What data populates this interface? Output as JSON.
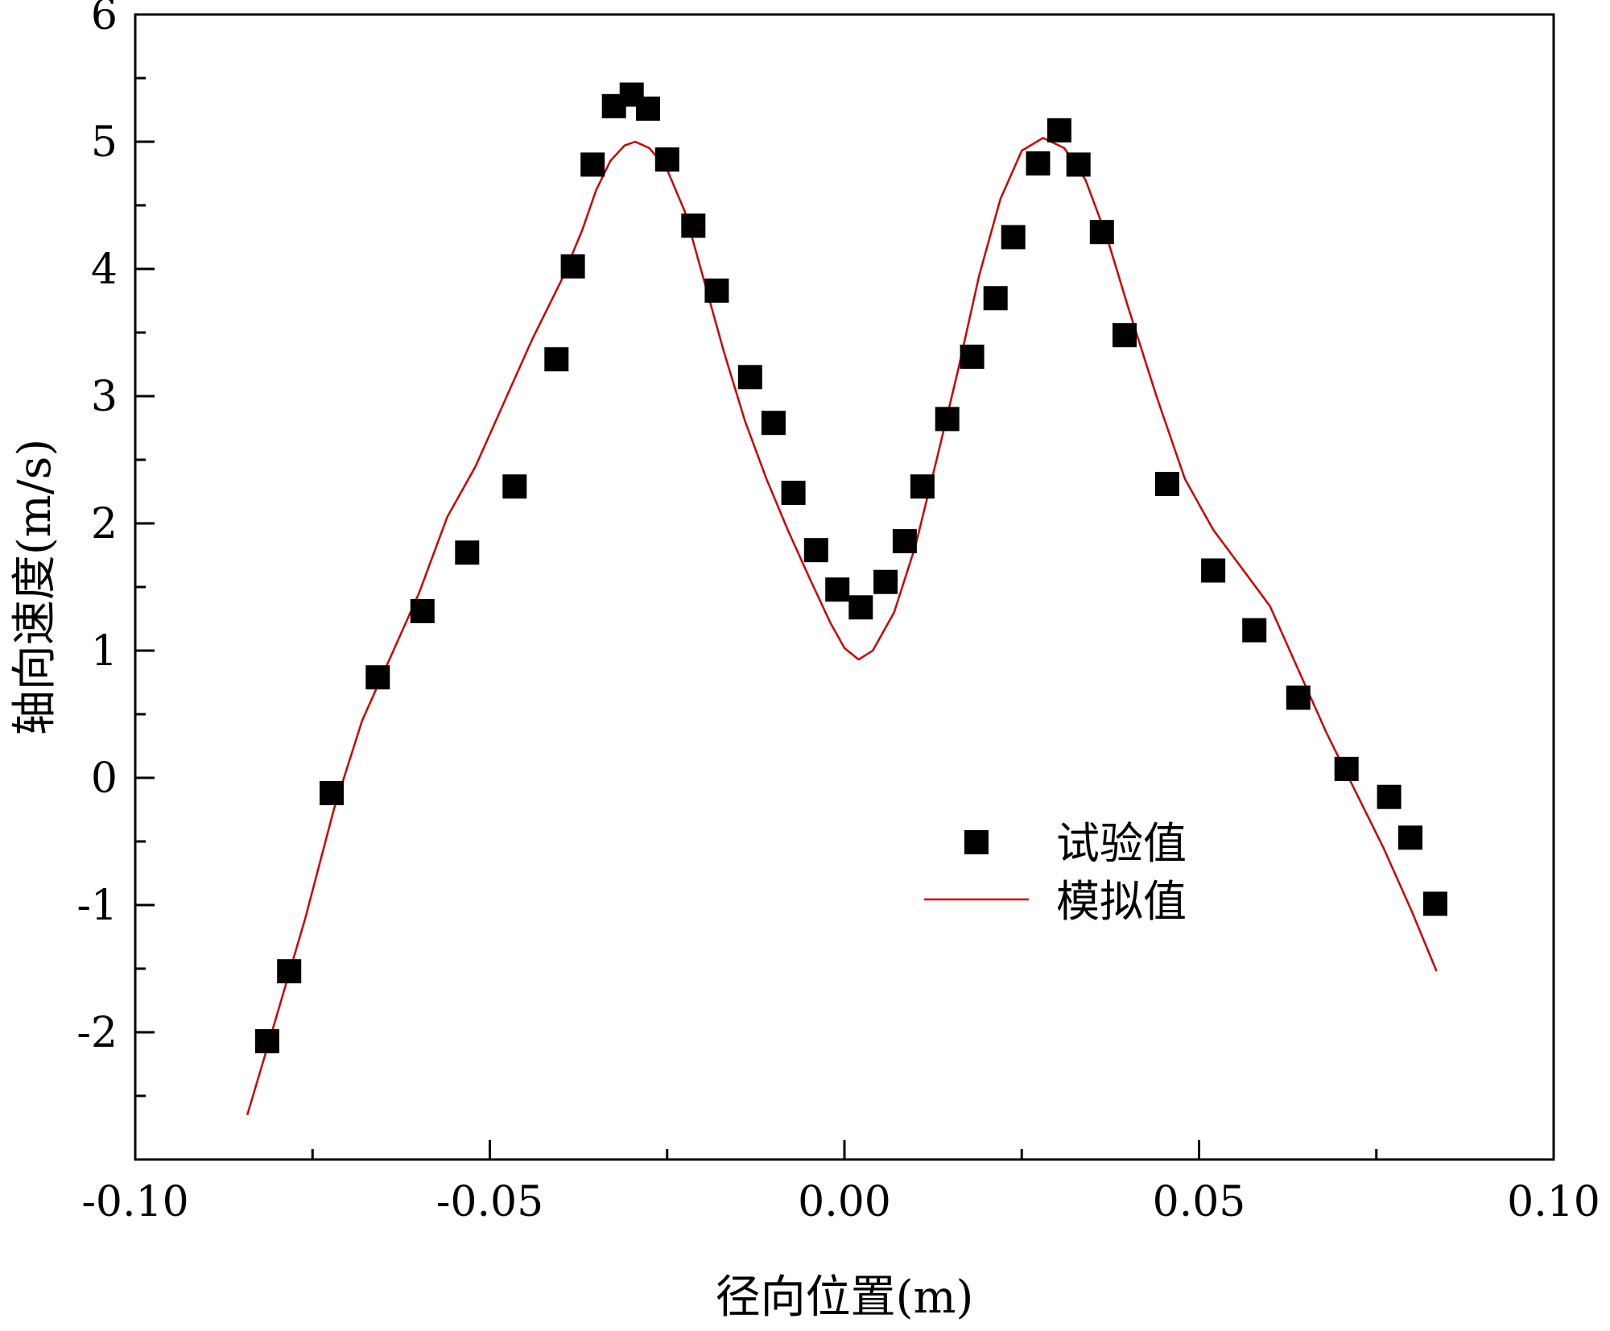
{
  "chart_data": {
    "type": "scatter",
    "title": "",
    "xlabel": "径向位置(m)",
    "ylabel": "轴向速度(m/s)",
    "xlim": [
      -0.1,
      0.1
    ],
    "ylim": [
      -3,
      6
    ],
    "xticks": [
      {
        "value": -0.1,
        "label": "-0.10"
      },
      {
        "value": -0.05,
        "label": "-0.05"
      },
      {
        "value": 0.0,
        "label": "0.00"
      },
      {
        "value": 0.05,
        "label": "0.05"
      },
      {
        "value": 0.1,
        "label": "0.10"
      }
    ],
    "yticks": [
      {
        "value": -2,
        "label": "-2"
      },
      {
        "value": -1,
        "label": "-1"
      },
      {
        "value": 0,
        "label": "0"
      },
      {
        "value": 1,
        "label": "1"
      },
      {
        "value": 2,
        "label": "2"
      },
      {
        "value": 3,
        "label": "3"
      },
      {
        "value": 4,
        "label": "4"
      },
      {
        "value": 5,
        "label": "5"
      },
      {
        "value": 6,
        "label": "6"
      }
    ],
    "grid": false,
    "legend": "center-right",
    "series": [
      {
        "name": "试验值",
        "kind": "scatter",
        "marker": "square",
        "color": "#000000",
        "points": [
          {
            "x": -0.0814,
            "y": -2.07
          },
          {
            "x": -0.0783,
            "y": -1.52
          },
          {
            "x": -0.0723,
            "y": -0.12
          },
          {
            "x": -0.0658,
            "y": 0.79
          },
          {
            "x": -0.0595,
            "y": 1.31
          },
          {
            "x": -0.0532,
            "y": 1.77
          },
          {
            "x": -0.0465,
            "y": 2.29
          },
          {
            "x": -0.0406,
            "y": 3.29
          },
          {
            "x": -0.0383,
            "y": 4.02
          },
          {
            "x": -0.0355,
            "y": 4.82
          },
          {
            "x": -0.0325,
            "y": 5.28
          },
          {
            "x": -0.03,
            "y": 5.37
          },
          {
            "x": -0.0277,
            "y": 5.26
          },
          {
            "x": -0.025,
            "y": 4.86
          },
          {
            "x": -0.0213,
            "y": 4.34
          },
          {
            "x": -0.018,
            "y": 3.83
          },
          {
            "x": -0.0133,
            "y": 3.15
          },
          {
            "x": -0.01,
            "y": 2.79
          },
          {
            "x": -0.0072,
            "y": 2.24
          },
          {
            "x": -0.004,
            "y": 1.79
          },
          {
            "x": -0.001,
            "y": 1.48
          },
          {
            "x": 0.0023,
            "y": 1.34
          },
          {
            "x": 0.0058,
            "y": 1.54
          },
          {
            "x": 0.0085,
            "y": 1.86
          },
          {
            "x": 0.011,
            "y": 2.29
          },
          {
            "x": 0.0145,
            "y": 2.82
          },
          {
            "x": 0.018,
            "y": 3.31
          },
          {
            "x": 0.0213,
            "y": 3.77
          },
          {
            "x": 0.0238,
            "y": 4.25
          },
          {
            "x": 0.0273,
            "y": 4.83
          },
          {
            "x": 0.0303,
            "y": 5.09
          },
          {
            "x": 0.033,
            "y": 4.82
          },
          {
            "x": 0.0363,
            "y": 4.29
          },
          {
            "x": 0.0395,
            "y": 3.48
          },
          {
            "x": 0.0455,
            "y": 2.31
          },
          {
            "x": 0.052,
            "y": 1.63
          },
          {
            "x": 0.0578,
            "y": 1.16
          },
          {
            "x": 0.064,
            "y": 0.63
          },
          {
            "x": 0.0708,
            "y": 0.07
          },
          {
            "x": 0.0768,
            "y": -0.15
          },
          {
            "x": 0.0798,
            "y": -0.47
          },
          {
            "x": 0.0833,
            "y": -0.99
          }
        ]
      },
      {
        "name": "模拟值",
        "kind": "line",
        "color": "#cc0000",
        "points": [
          {
            "x": -0.0842,
            "y": -2.65
          },
          {
            "x": -0.081,
            "y": -2.05
          },
          {
            "x": -0.076,
            "y": -1.1
          },
          {
            "x": -0.072,
            "y": -0.25
          },
          {
            "x": -0.068,
            "y": 0.45
          },
          {
            "x": -0.064,
            "y": 0.95
          },
          {
            "x": -0.06,
            "y": 1.45
          },
          {
            "x": -0.056,
            "y": 2.05
          },
          {
            "x": -0.052,
            "y": 2.45
          },
          {
            "x": -0.048,
            "y": 2.95
          },
          {
            "x": -0.044,
            "y": 3.45
          },
          {
            "x": -0.04,
            "y": 3.9
          },
          {
            "x": -0.037,
            "y": 4.3
          },
          {
            "x": -0.035,
            "y": 4.62
          },
          {
            "x": -0.033,
            "y": 4.85
          },
          {
            "x": -0.031,
            "y": 4.97
          },
          {
            "x": -0.0295,
            "y": 5.0
          },
          {
            "x": -0.0275,
            "y": 4.95
          },
          {
            "x": -0.025,
            "y": 4.78
          },
          {
            "x": -0.0225,
            "y": 4.45
          },
          {
            "x": -0.02,
            "y": 3.95
          },
          {
            "x": -0.017,
            "y": 3.35
          },
          {
            "x": -0.014,
            "y": 2.8
          },
          {
            "x": -0.011,
            "y": 2.35
          },
          {
            "x": -0.008,
            "y": 1.95
          },
          {
            "x": -0.005,
            "y": 1.58
          },
          {
            "x": -0.002,
            "y": 1.22
          },
          {
            "x": 0.0,
            "y": 1.02
          },
          {
            "x": 0.002,
            "y": 0.93
          },
          {
            "x": 0.004,
            "y": 1.0
          },
          {
            "x": 0.007,
            "y": 1.3
          },
          {
            "x": 0.01,
            "y": 1.82
          },
          {
            "x": 0.013,
            "y": 2.5
          },
          {
            "x": 0.016,
            "y": 3.2
          },
          {
            "x": 0.019,
            "y": 3.95
          },
          {
            "x": 0.022,
            "y": 4.55
          },
          {
            "x": 0.025,
            "y": 4.93
          },
          {
            "x": 0.028,
            "y": 5.03
          },
          {
            "x": 0.031,
            "y": 4.95
          },
          {
            "x": 0.034,
            "y": 4.7
          },
          {
            "x": 0.037,
            "y": 4.25
          },
          {
            "x": 0.04,
            "y": 3.7
          },
          {
            "x": 0.044,
            "y": 3.0
          },
          {
            "x": 0.048,
            "y": 2.35
          },
          {
            "x": 0.052,
            "y": 1.95
          },
          {
            "x": 0.056,
            "y": 1.65
          },
          {
            "x": 0.06,
            "y": 1.35
          },
          {
            "x": 0.064,
            "y": 0.85
          },
          {
            "x": 0.068,
            "y": 0.35
          },
          {
            "x": 0.072,
            "y": -0.1
          },
          {
            "x": 0.076,
            "y": -0.55
          },
          {
            "x": 0.08,
            "y": -1.05
          },
          {
            "x": 0.0835,
            "y": -1.52
          }
        ]
      }
    ]
  }
}
